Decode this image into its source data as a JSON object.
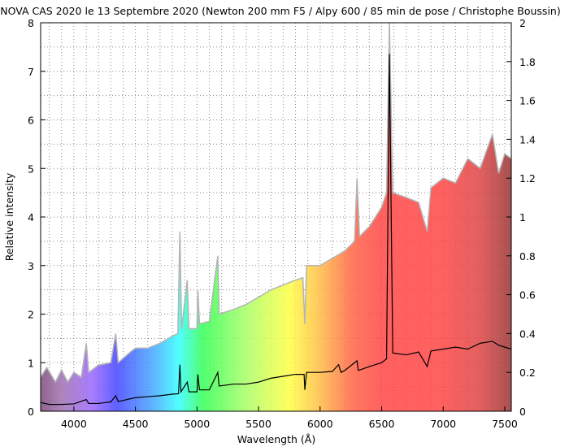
{
  "chart_data": {
    "type": "line",
    "title": "NOVA CAS 2020 le 13 Septembre 2020 (Newton 200 mm F5 / Alpy 600 / 85 min de pose / Christophe Boussin)",
    "xlabel": "Wavelength (Å)",
    "ylabel": "Relative intensity",
    "xlim": [
      3730,
      7553
    ],
    "ylim": [
      0,
      8
    ],
    "y2lim": [
      0,
      2
    ],
    "xticks": [
      4000,
      4500,
      5000,
      5500,
      6000,
      6500,
      7000,
      7500
    ],
    "yticks": [
      0,
      1,
      2,
      3,
      4,
      5,
      6,
      7,
      8
    ],
    "y2ticks": [
      "0",
      "0.2",
      "0.4",
      "0.6",
      "0.8",
      "1",
      "1.2",
      "1.4",
      "1.6",
      "1.8",
      "2"
    ],
    "grid": true,
    "fill": "rainbow spectrum colors beneath gray series",
    "series": [
      {
        "axis": "left",
        "color": "#b4b4b4",
        "points": [
          [
            3730,
            0.7
          ],
          [
            3780,
            0.9
          ],
          [
            3850,
            0.6
          ],
          [
            3900,
            0.85
          ],
          [
            3950,
            0.6
          ],
          [
            4000,
            0.8
          ],
          [
            4060,
            0.7
          ],
          [
            4101,
            1.4
          ],
          [
            4120,
            0.8
          ],
          [
            4200,
            0.95
          ],
          [
            4300,
            1.0
          ],
          [
            4340,
            1.6
          ],
          [
            4360,
            1.0
          ],
          [
            4450,
            1.2
          ],
          [
            4500,
            1.3
          ],
          [
            4600,
            1.3
          ],
          [
            4700,
            1.4
          ],
          [
            4800,
            1.55
          ],
          [
            4845,
            1.6
          ],
          [
            4861,
            3.7
          ],
          [
            4875,
            1.7
          ],
          [
            4921,
            2.7
          ],
          [
            4935,
            1.7
          ],
          [
            5000,
            1.7
          ],
          [
            5007,
            2.5
          ],
          [
            5020,
            1.8
          ],
          [
            5100,
            1.85
          ],
          [
            5169,
            3.2
          ],
          [
            5180,
            2.0
          ],
          [
            5300,
            2.1
          ],
          [
            5400,
            2.2
          ],
          [
            5500,
            2.35
          ],
          [
            5600,
            2.5
          ],
          [
            5700,
            2.6
          ],
          [
            5800,
            2.7
          ],
          [
            5860,
            2.75
          ],
          [
            5876,
            1.8
          ],
          [
            5890,
            3.0
          ],
          [
            6000,
            3.0
          ],
          [
            6100,
            3.15
          ],
          [
            6200,
            3.3
          ],
          [
            6280,
            3.5
          ],
          [
            6300,
            4.8
          ],
          [
            6320,
            3.6
          ],
          [
            6400,
            3.8
          ],
          [
            6500,
            4.2
          ],
          [
            6540,
            4.5
          ],
          [
            6563,
            8.0
          ],
          [
            6590,
            4.5
          ],
          [
            6700,
            4.4
          ],
          [
            6800,
            4.3
          ],
          [
            6870,
            3.7
          ],
          [
            6900,
            4.6
          ],
          [
            7000,
            4.8
          ],
          [
            7100,
            4.7
          ],
          [
            7200,
            5.2
          ],
          [
            7300,
            5.0
          ],
          [
            7400,
            5.7
          ],
          [
            7450,
            4.9
          ],
          [
            7500,
            5.3
          ],
          [
            7553,
            5.2
          ]
        ]
      },
      {
        "axis": "right",
        "color": "#000000",
        "points": [
          [
            3730,
            0.045
          ],
          [
            3800,
            0.035
          ],
          [
            3900,
            0.035
          ],
          [
            4000,
            0.038
          ],
          [
            4101,
            0.06
          ],
          [
            4120,
            0.04
          ],
          [
            4200,
            0.04
          ],
          [
            4300,
            0.048
          ],
          [
            4340,
            0.08
          ],
          [
            4360,
            0.05
          ],
          [
            4500,
            0.07
          ],
          [
            4600,
            0.075
          ],
          [
            4700,
            0.08
          ],
          [
            4800,
            0.088
          ],
          [
            4850,
            0.09
          ],
          [
            4861,
            0.24
          ],
          [
            4870,
            0.1
          ],
          [
            4921,
            0.15
          ],
          [
            4935,
            0.1
          ],
          [
            5000,
            0.1
          ],
          [
            5007,
            0.19
          ],
          [
            5020,
            0.11
          ],
          [
            5100,
            0.11
          ],
          [
            5169,
            0.2
          ],
          [
            5180,
            0.13
          ],
          [
            5300,
            0.14
          ],
          [
            5400,
            0.14
          ],
          [
            5500,
            0.15
          ],
          [
            5600,
            0.17
          ],
          [
            5700,
            0.18
          ],
          [
            5800,
            0.19
          ],
          [
            5870,
            0.19
          ],
          [
            5876,
            0.11
          ],
          [
            5890,
            0.2
          ],
          [
            6000,
            0.2
          ],
          [
            6100,
            0.205
          ],
          [
            6150,
            0.24
          ],
          [
            6170,
            0.2
          ],
          [
            6200,
            0.21
          ],
          [
            6300,
            0.26
          ],
          [
            6310,
            0.21
          ],
          [
            6400,
            0.23
          ],
          [
            6500,
            0.25
          ],
          [
            6540,
            0.27
          ],
          [
            6563,
            1.84
          ],
          [
            6590,
            0.3
          ],
          [
            6700,
            0.29
          ],
          [
            6800,
            0.305
          ],
          [
            6870,
            0.23
          ],
          [
            6900,
            0.31
          ],
          [
            7000,
            0.32
          ],
          [
            7100,
            0.33
          ],
          [
            7200,
            0.32
          ],
          [
            7300,
            0.35
          ],
          [
            7400,
            0.36
          ],
          [
            7450,
            0.34
          ],
          [
            7500,
            0.33
          ],
          [
            7553,
            0.32
          ]
        ]
      }
    ]
  }
}
